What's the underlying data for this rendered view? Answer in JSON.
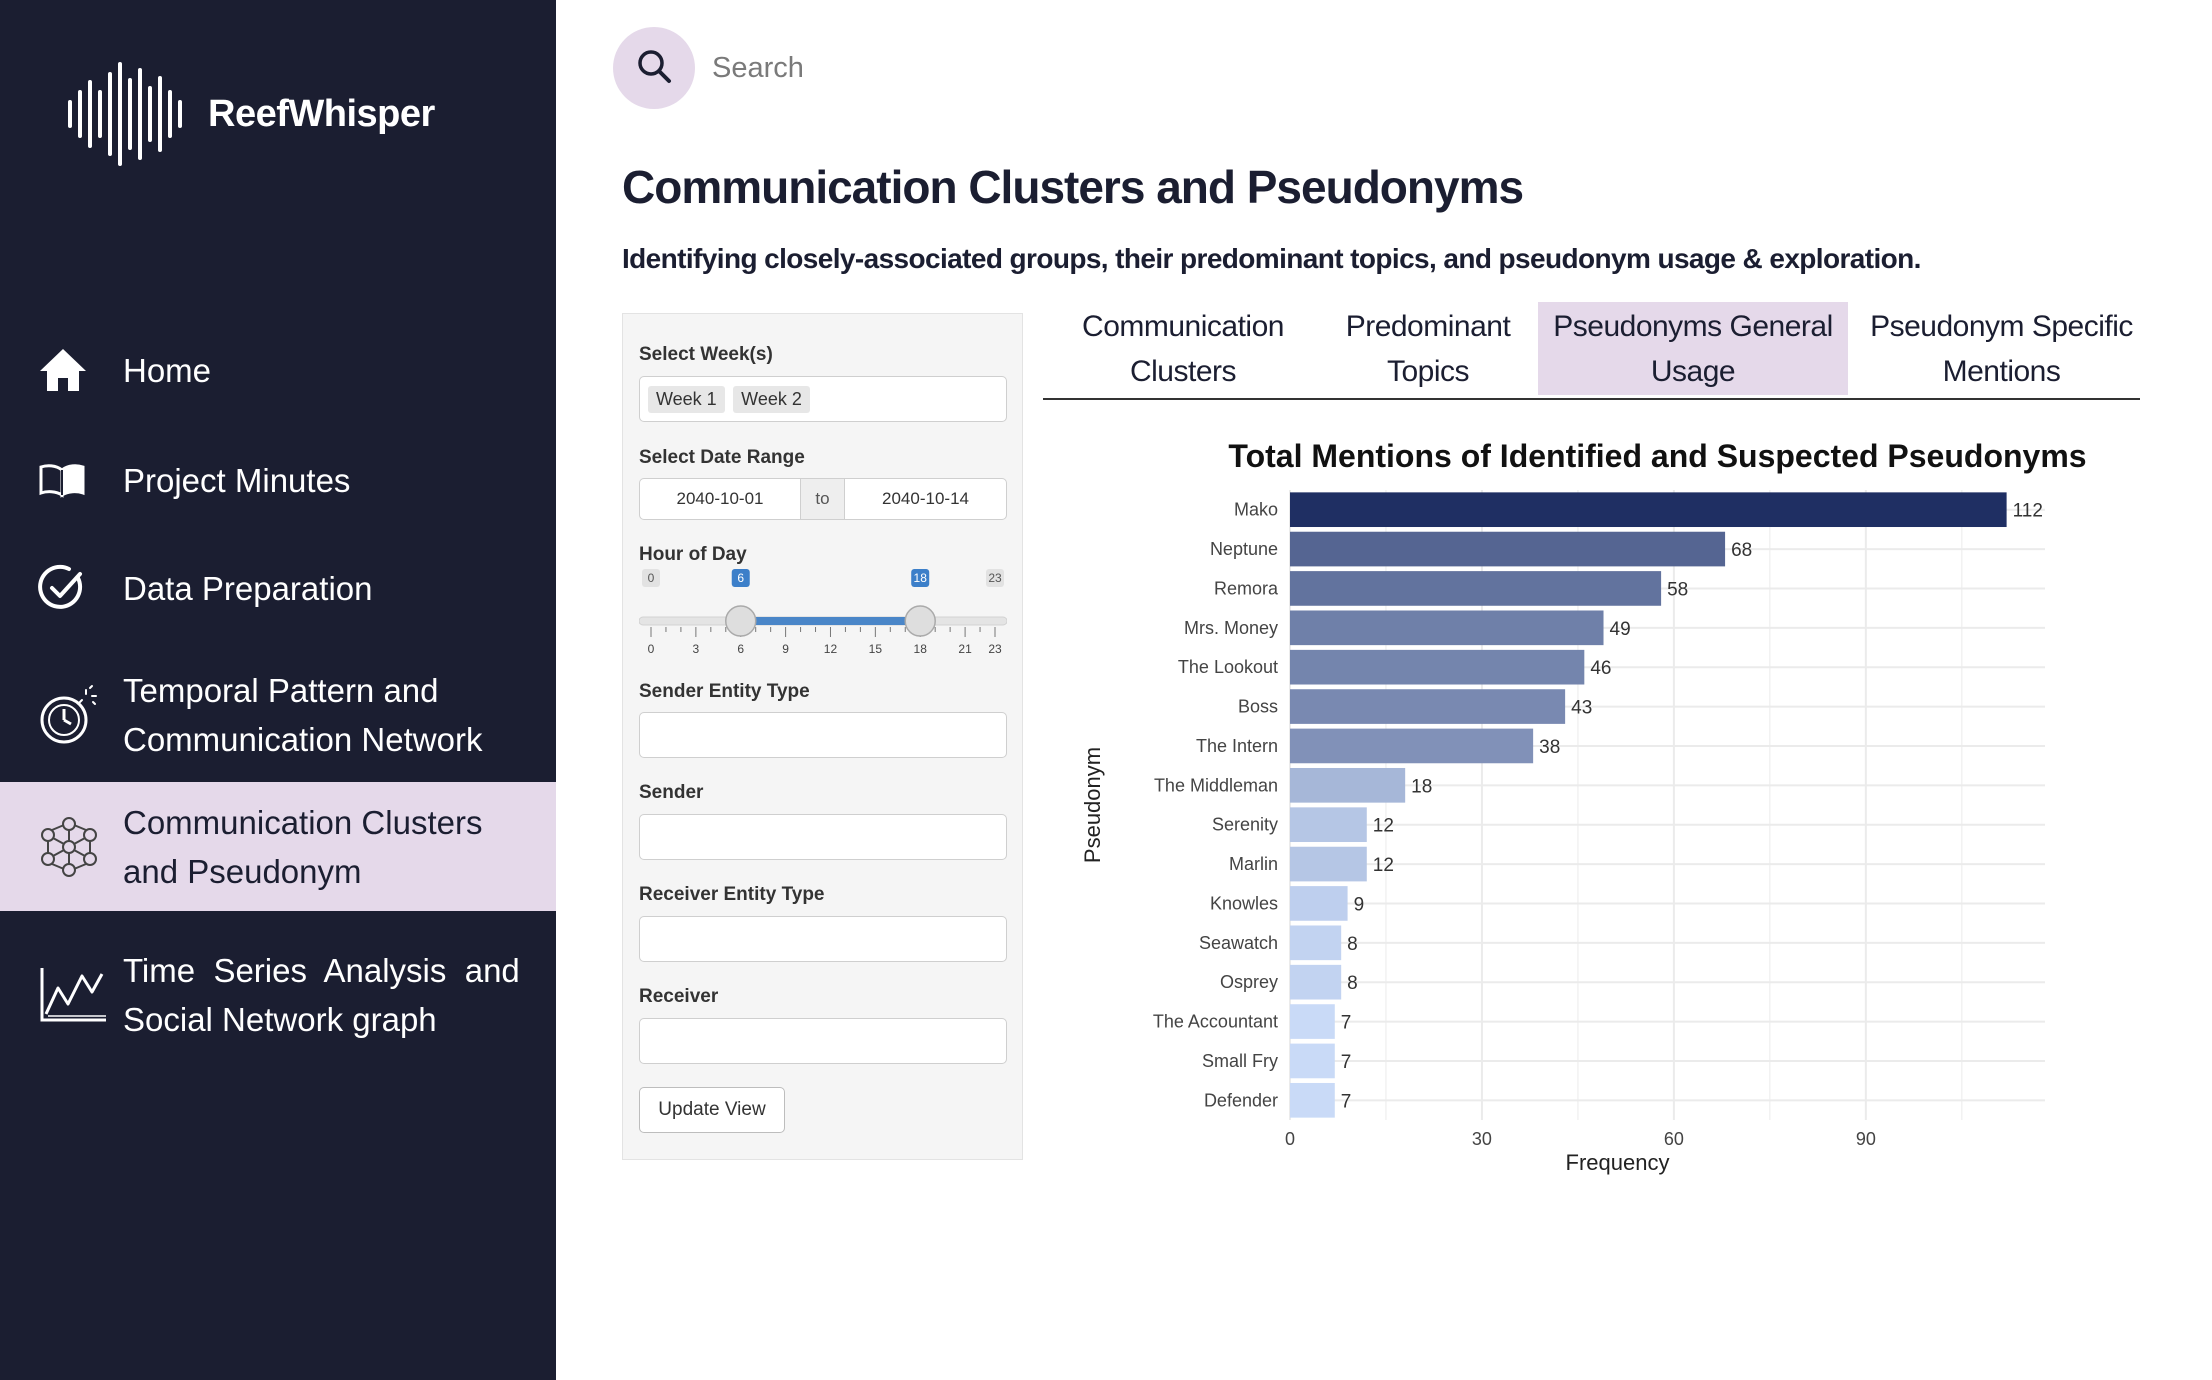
{
  "app": {
    "name": "ReefWhisper"
  },
  "nav": [
    {
      "label": "Home",
      "icon": "home-icon",
      "active": false
    },
    {
      "label": "Project Minutes",
      "icon": "book-icon",
      "active": false
    },
    {
      "label": "Data Preparation",
      "icon": "check-circle-icon",
      "active": false
    },
    {
      "label_lines": [
        "Temporal Pattern and",
        "Communication Network"
      ],
      "icon": "timer-icon",
      "active": false
    },
    {
      "label_lines": [
        "Communication Clusters",
        "and Pseudonym"
      ],
      "icon": "network-icon",
      "active": true
    },
    {
      "label_lines": [
        "Time  Series  Analysis  and",
        "Social Network graph"
      ],
      "icon": "line-chart-icon",
      "active": false
    }
  ],
  "search": {
    "placeholder": "Search"
  },
  "page": {
    "title": "Communication Clusters and Pseudonyms",
    "subtitle": "Identifying closely-associated groups, their predominant topics, and pseudonym usage & exploration."
  },
  "filters": {
    "week_label": "Select Week(s)",
    "weeks_selected": [
      "Week 1",
      "Week 2"
    ],
    "date_label": "Select Date Range",
    "date_start": "2040-10-01",
    "date_sep": "to",
    "date_end": "2040-10-14",
    "hour_label": "Hour of Day",
    "hour_min": 0,
    "hour_max": 23,
    "hour_from": 6,
    "hour_to": 18,
    "hour_ticks": [
      "0",
      "3",
      "6",
      "9",
      "12",
      "15",
      "18",
      "21",
      "23"
    ],
    "sender_type_label": "Sender Entity Type",
    "sender_label": "Sender",
    "receiver_type_label": "Receiver Entity Type",
    "receiver_label": "Receiver",
    "update_label": "Update View"
  },
  "tabs": [
    {
      "lines": [
        "Communication",
        "Clusters"
      ],
      "active": false
    },
    {
      "lines": [
        "Predominant",
        "Topics"
      ],
      "active": false
    },
    {
      "lines": [
        "Pseudonyms General",
        "Usage"
      ],
      "active": true
    },
    {
      "lines": [
        "Pseudonym Specific",
        "Mentions"
      ],
      "active": false
    }
  ],
  "chart_data": {
    "type": "bar",
    "orientation": "horizontal",
    "title": "Total Mentions of Identified and Suspected Pseudonyms",
    "xlabel": "Frequency",
    "ylabel": "Pseudonym",
    "xlim": [
      0,
      118
    ],
    "xticks": [
      0,
      30,
      60,
      90
    ],
    "grid": true,
    "categories": [
      "Mako",
      "Neptune",
      "Remora",
      "Mrs. Money",
      "The Lookout",
      "Boss",
      "The Intern",
      "The Middleman",
      "Serenity",
      "Marlin",
      "Knowles",
      "Seawatch",
      "Osprey",
      "The Accountant",
      "Small Fry",
      "Defender"
    ],
    "values": [
      112,
      68,
      58,
      49,
      46,
      43,
      38,
      18,
      12,
      12,
      9,
      8,
      8,
      7,
      7,
      7
    ],
    "color_scale": [
      "#c9daf7",
      "#1f2f63"
    ]
  }
}
